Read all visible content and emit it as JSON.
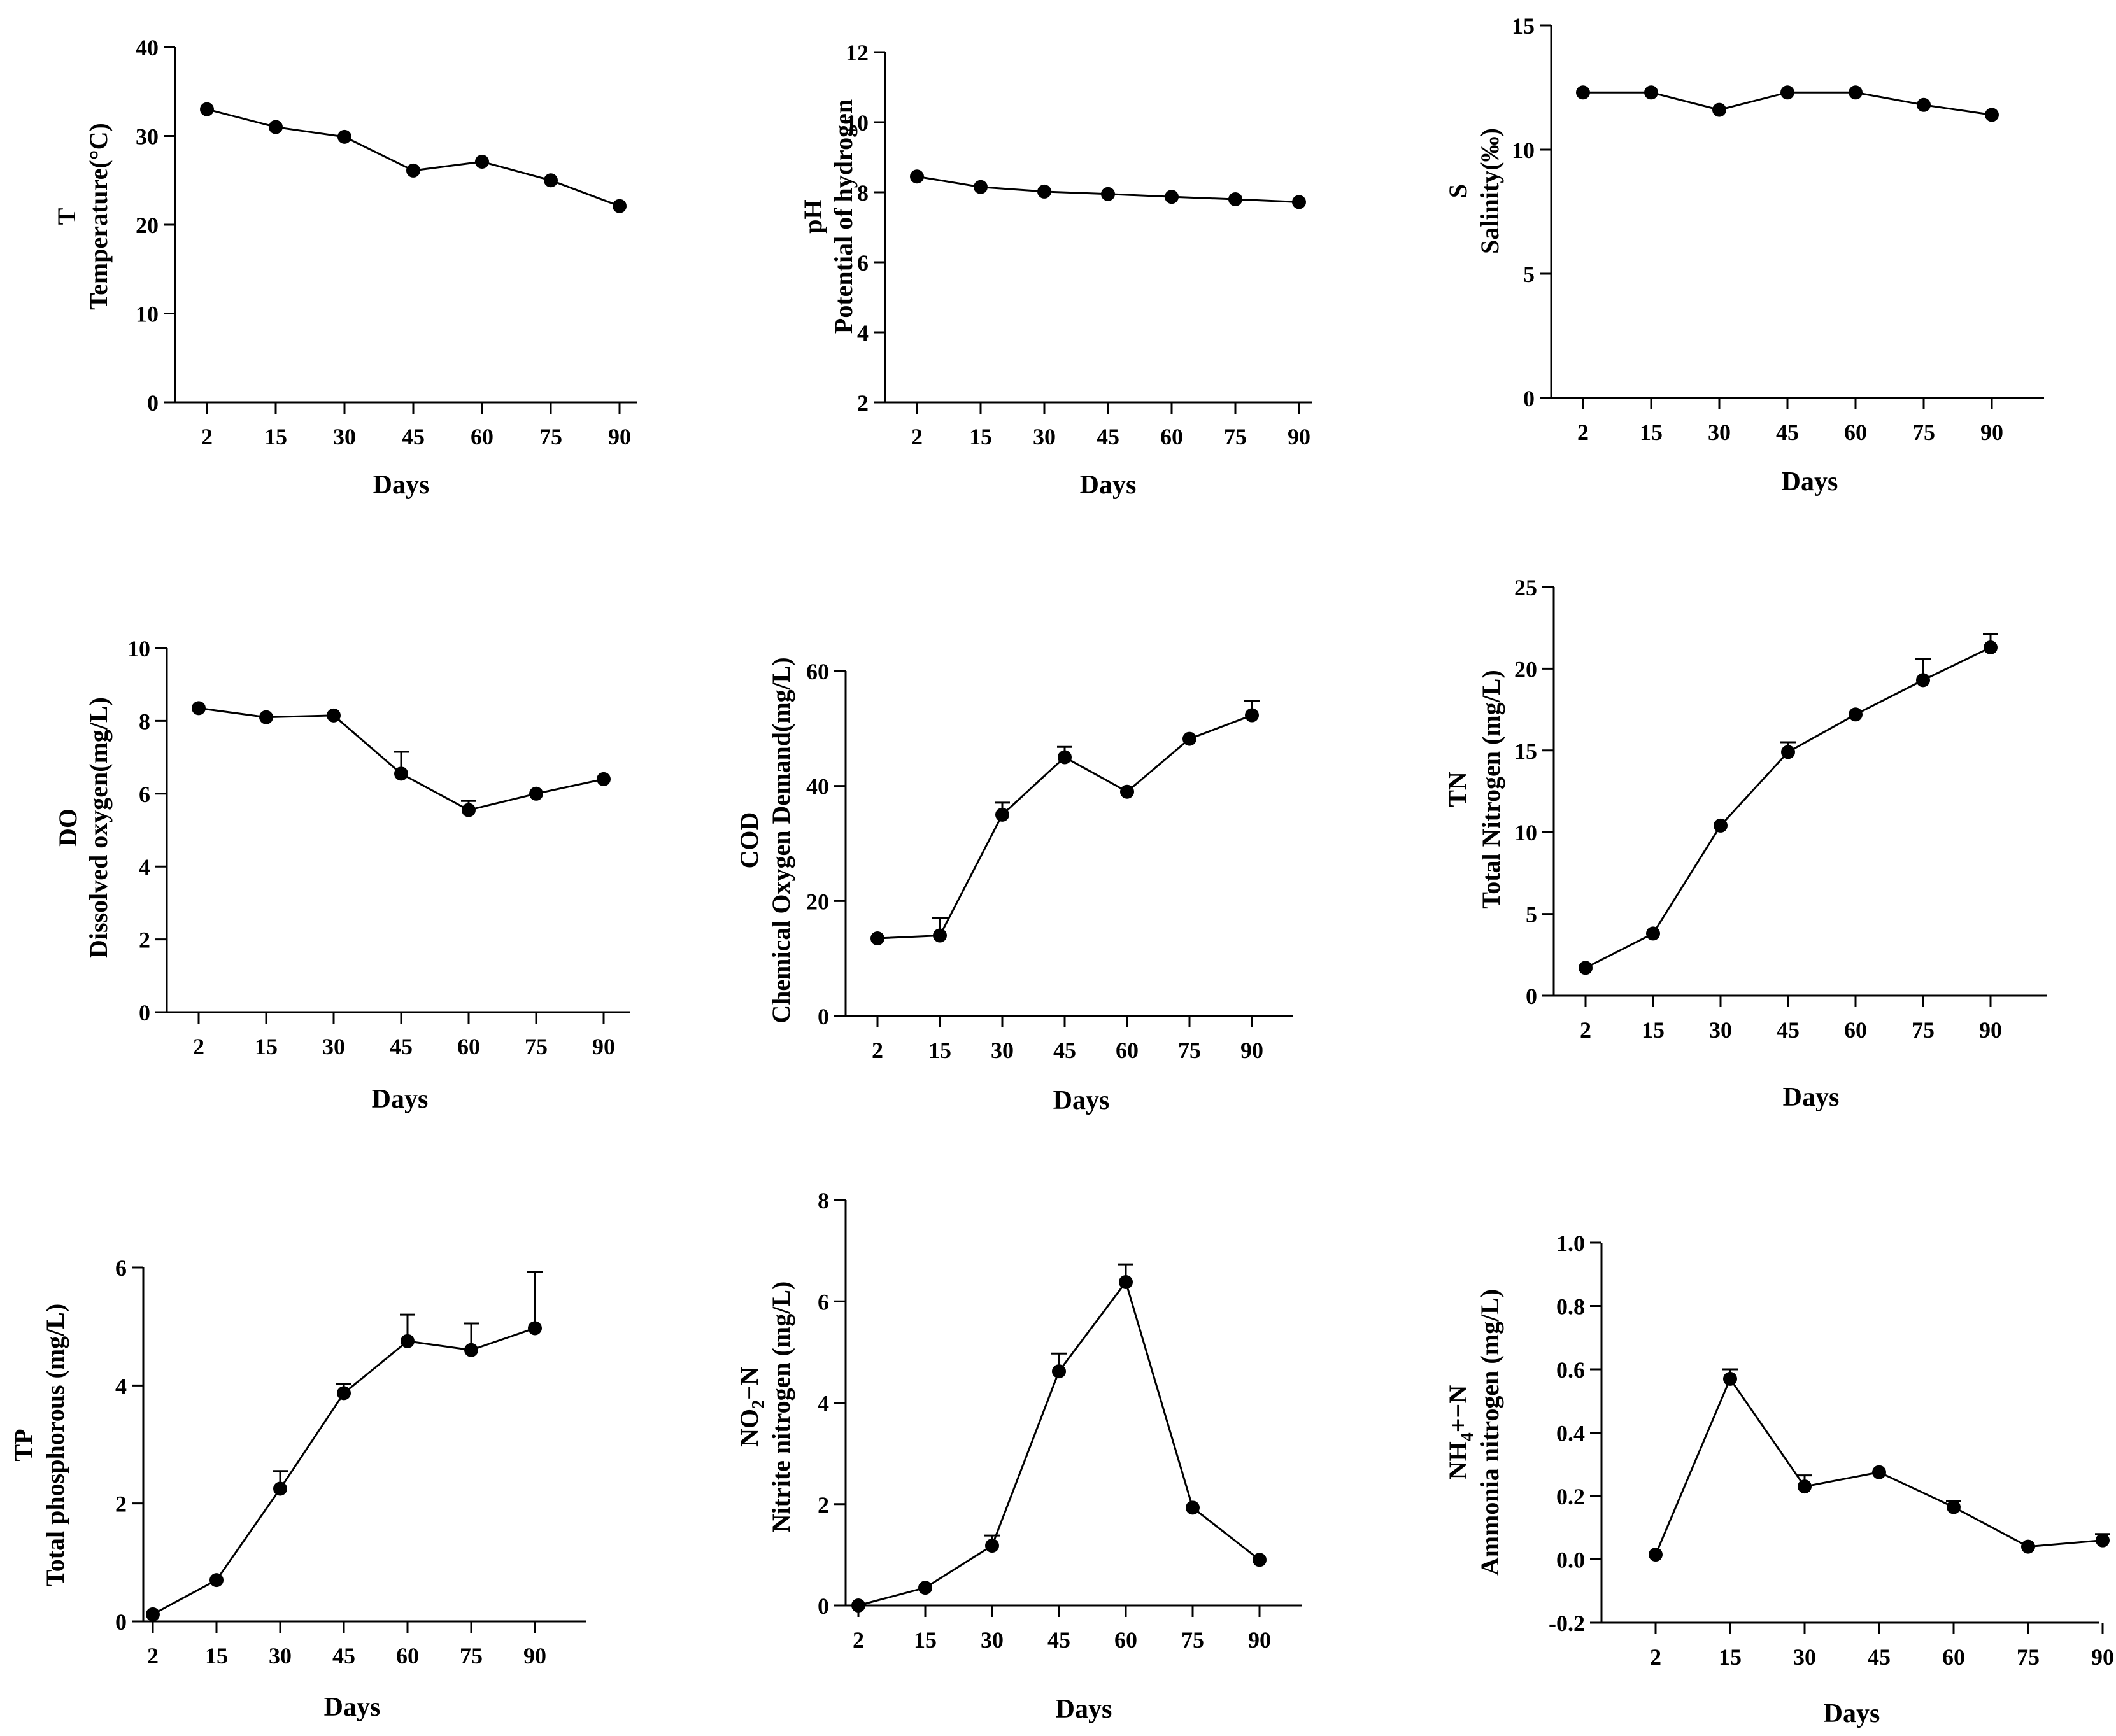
{
  "figure": {
    "background": "#ffffff",
    "line_color": "#000000"
  },
  "chart_data": [
    {
      "type": "line",
      "xlabel": "Days",
      "ylabel_abbr": "T",
      "ylabel": "Temperature(°C)",
      "categories": [
        "2",
        "15",
        "30",
        "45",
        "60",
        "75",
        "90"
      ],
      "values": [
        33,
        31,
        29.9,
        26.1,
        27.1,
        25,
        22.1
      ],
      "errors": [
        0,
        0,
        0,
        0,
        0,
        0,
        0
      ],
      "ylim": [
        0,
        40
      ],
      "yticks": [
        0,
        10,
        20,
        30,
        40
      ],
      "ytick_labels": [
        "0",
        "10",
        "20",
        "30",
        "40"
      ]
    },
    {
      "type": "line",
      "xlabel": "Days",
      "ylabel_abbr": "pH",
      "ylabel": "Potential of hydrogen",
      "categories": [
        "2",
        "15",
        "30",
        "45",
        "60",
        "75",
        "90"
      ],
      "values": [
        8.45,
        8.15,
        8.02,
        7.95,
        7.87,
        7.8,
        7.72
      ],
      "errors": [
        0,
        0,
        0,
        0,
        0,
        0,
        0
      ],
      "ylim": [
        2,
        12
      ],
      "yticks": [
        2,
        4,
        6,
        8,
        10,
        12
      ],
      "ytick_labels": [
        "2",
        "4",
        "6",
        "8",
        "10",
        "12"
      ]
    },
    {
      "type": "line",
      "xlabel": "Days",
      "ylabel_abbr": "S",
      "ylabel": "Salinity(‰)",
      "categories": [
        "2",
        "15",
        "30",
        "45",
        "60",
        "75",
        "90"
      ],
      "values": [
        12.3,
        12.3,
        11.6,
        12.3,
        12.3,
        11.8,
        11.4
      ],
      "errors": [
        0,
        0,
        0,
        0,
        0,
        0,
        0
      ],
      "ylim": [
        0,
        15
      ],
      "yticks": [
        0,
        5,
        10,
        15
      ],
      "ytick_labels": [
        "0",
        "5",
        "10",
        "15"
      ]
    },
    {
      "type": "line",
      "xlabel": "Days",
      "ylabel_abbr": "DO",
      "ylabel": "Dissolved oxygen(mg/L)",
      "categories": [
        "2",
        "15",
        "30",
        "45",
        "60",
        "75",
        "90"
      ],
      "values": [
        8.35,
        8.1,
        8.15,
        6.55,
        5.55,
        6,
        6.4
      ],
      "errors": [
        0,
        0,
        0,
        0.6,
        0.25,
        0,
        0
      ],
      "ylim": [
        0,
        10
      ],
      "yticks": [
        0,
        2,
        4,
        6,
        8,
        10
      ],
      "ytick_labels": [
        "0",
        "2",
        "4",
        "6",
        "8",
        "10"
      ]
    },
    {
      "type": "line",
      "xlabel": "Days",
      "ylabel_abbr": "COD",
      "ylabel": "Chemical Oxygen Demand(mg/L)",
      "categories": [
        "2",
        "15",
        "30",
        "45",
        "60",
        "75",
        "90"
      ],
      "values": [
        13.5,
        14,
        35,
        45,
        39,
        48.2,
        52.3
      ],
      "errors": [
        0,
        3,
        2.1,
        1.8,
        0,
        0,
        2.5
      ],
      "ylim": [
        0,
        60
      ],
      "yticks": [
        0,
        20,
        40,
        60
      ],
      "ytick_labels": [
        "0",
        "20",
        "40",
        "60"
      ]
    },
    {
      "type": "line",
      "xlabel": "Days",
      "ylabel_abbr": "TN",
      "ylabel": "Total Nitrogen (mg/L)",
      "categories": [
        "2",
        "15",
        "30",
        "45",
        "60",
        "75",
        "90"
      ],
      "values": [
        1.7,
        3.8,
        10.4,
        14.9,
        17.2,
        19.3,
        21.3
      ],
      "errors": [
        0,
        0,
        0,
        0.6,
        0,
        1.3,
        0.8
      ],
      "ylim": [
        0,
        25
      ],
      "yticks": [
        0,
        5,
        10,
        15,
        20,
        25
      ],
      "ytick_labels": [
        "0",
        "5",
        "10",
        "15",
        "20",
        "25"
      ]
    },
    {
      "type": "line",
      "xlabel": "Days",
      "ylabel_abbr": "TP",
      "ylabel": "Total phosphorous (mg/L)",
      "categories": [
        "2",
        "15",
        "30",
        "45",
        "60",
        "75",
        "90"
      ],
      "values": [
        0.12,
        0.7,
        2.25,
        3.87,
        4.75,
        4.6,
        4.97
      ],
      "errors": [
        0,
        0,
        0.3,
        0.15,
        0.45,
        0.45,
        0.95
      ],
      "ylim": [
        0,
        6
      ],
      "yticks": [
        0,
        2,
        4,
        6
      ],
      "ytick_labels": [
        "0",
        "2",
        "4",
        "6"
      ]
    },
    {
      "type": "line",
      "xlabel": "Days",
      "ylabel_abbr_main": "NO",
      "ylabel_abbr_sub": "2",
      "ylabel_abbr_rest": "−N",
      "ylabel": "Nitrite nitrogen (mg/L)",
      "categories": [
        "2",
        "15",
        "30",
        "45",
        "60",
        "75",
        "90"
      ],
      "values": [
        0,
        0.35,
        1.18,
        4.62,
        6.38,
        1.93,
        0.9
      ],
      "errors": [
        0,
        0,
        0.2,
        0.35,
        0.35,
        0,
        0
      ],
      "ylim": [
        0,
        8
      ],
      "yticks": [
        0,
        2,
        4,
        6,
        8
      ],
      "ytick_labels": [
        "0",
        "2",
        "4",
        "6",
        "8"
      ]
    },
    {
      "type": "line",
      "xlabel": "Days",
      "ylabel_abbr_main": "NH",
      "ylabel_abbr_sub": "4",
      "ylabel_abbr_rest": "+−N",
      "ylabel": "Ammonia nitrogen (mg/L)",
      "categories": [
        "2",
        "15",
        "30",
        "45",
        "60",
        "75",
        "90"
      ],
      "values": [
        0.015,
        0.57,
        0.23,
        0.275,
        0.165,
        0.04,
        0.06
      ],
      "errors": [
        0,
        0.03,
        0.035,
        0,
        0.02,
        0,
        0.02
      ],
      "ylim": [
        -0.2,
        1.0
      ],
      "yticks": [
        -0.2,
        0,
        0.2,
        0.4,
        0.6,
        0.8,
        1.0
      ],
      "ytick_labels": [
        "-0.2",
        "0.0",
        "0.2",
        "0.4",
        "0.6",
        "0.8",
        "1.0"
      ]
    }
  ]
}
